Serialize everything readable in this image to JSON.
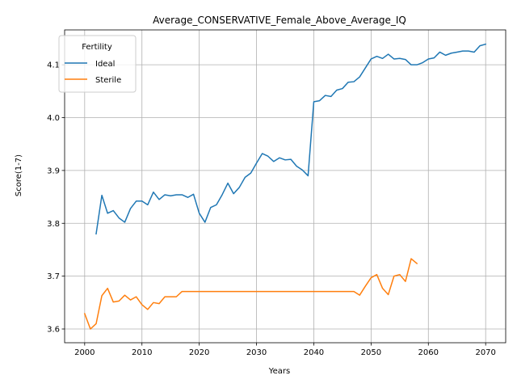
{
  "chart_data": {
    "type": "line",
    "title": "Average_CONSERVATIVE_Female_Above_Average_IQ",
    "xlabel": "Years",
    "ylabel": "Score(1-7)",
    "xlim": [
      1996.5,
      2073.5
    ],
    "ylim": [
      3.574,
      4.166
    ],
    "x_ticks": [
      2000,
      2010,
      2020,
      2030,
      2040,
      2050,
      2060,
      2070
    ],
    "y_ticks": [
      3.6,
      3.7,
      3.8,
      3.9,
      4.0,
      4.1
    ],
    "x_tick_labels": [
      "2000",
      "2010",
      "2020",
      "2030",
      "2040",
      "2050",
      "2060",
      "2070"
    ],
    "y_tick_labels": [
      "3.6",
      "3.7",
      "3.8",
      "3.9",
      "4.0",
      "4.1"
    ],
    "grid": true,
    "legend": {
      "title": "Fertility",
      "placement": "top-left"
    },
    "series": [
      {
        "name": "Ideal",
        "color": "#1f77b4",
        "x": [
          2002,
          2003,
          2004,
          2005,
          2006,
          2007,
          2008,
          2009,
          2010,
          2011,
          2012,
          2013,
          2014,
          2015,
          2016,
          2017,
          2018,
          2019,
          2020,
          2021,
          2022,
          2023,
          2024,
          2025,
          2026,
          2027,
          2028,
          2029,
          2030,
          2031,
          2032,
          2033,
          2034,
          2035,
          2036,
          2037,
          2038,
          2039,
          2040,
          2041,
          2042,
          2043,
          2044,
          2045,
          2046,
          2047,
          2048,
          2049,
          2050,
          2051,
          2052,
          2053,
          2054,
          2055,
          2056,
          2057,
          2058,
          2059,
          2060,
          2061,
          2062,
          2063,
          2064,
          2065,
          2066,
          2067,
          2068,
          2069,
          2070
        ],
        "values": [
          3.78,
          3.853,
          3.819,
          3.824,
          3.81,
          3.802,
          3.828,
          3.842,
          3.842,
          3.835,
          3.859,
          3.845,
          3.854,
          3.852,
          3.854,
          3.854,
          3.849,
          3.855,
          3.819,
          3.802,
          3.83,
          3.835,
          3.854,
          3.876,
          3.856,
          3.868,
          3.887,
          3.895,
          3.914,
          3.932,
          3.927,
          3.917,
          3.924,
          3.92,
          3.921,
          3.908,
          3.901,
          3.89,
          4.03,
          4.032,
          4.042,
          4.04,
          4.052,
          4.055,
          4.067,
          4.068,
          4.077,
          4.094,
          4.111,
          4.116,
          4.112,
          4.12,
          4.111,
          4.112,
          4.11,
          4.1,
          4.1,
          4.104,
          4.111,
          4.113,
          4.124,
          4.118,
          4.122,
          4.124,
          4.126,
          4.126,
          4.124,
          4.136,
          4.139
        ]
      },
      {
        "name": "Sterile",
        "color": "#ff7f0e",
        "x": [
          2000,
          2001,
          2002,
          2003,
          2004,
          2005,
          2006,
          2007,
          2008,
          2009,
          2010,
          2011,
          2012,
          2013,
          2014,
          2015,
          2016,
          2017,
          2018,
          2019,
          2020,
          2021,
          2022,
          2023,
          2024,
          2025,
          2026,
          2027,
          2028,
          2029,
          2030,
          2031,
          2032,
          2033,
          2034,
          2035,
          2036,
          2037,
          2038,
          2039,
          2040,
          2041,
          2042,
          2043,
          2044,
          2045,
          2046,
          2047,
          2048,
          2049,
          2050,
          2051,
          2052,
          2053,
          2054,
          2055,
          2056,
          2057,
          2058
        ],
        "values": [
          3.629,
          3.6,
          3.61,
          3.663,
          3.677,
          3.651,
          3.653,
          3.664,
          3.655,
          3.661,
          3.646,
          3.637,
          3.65,
          3.648,
          3.661,
          3.661,
          3.661,
          3.671,
          3.671,
          3.671,
          3.671,
          3.671,
          3.671,
          3.671,
          3.671,
          3.671,
          3.671,
          3.671,
          3.671,
          3.671,
          3.671,
          3.671,
          3.671,
          3.671,
          3.671,
          3.671,
          3.671,
          3.671,
          3.671,
          3.671,
          3.671,
          3.671,
          3.671,
          3.671,
          3.671,
          3.671,
          3.671,
          3.671,
          3.664,
          3.681,
          3.697,
          3.703,
          3.677,
          3.665,
          3.7,
          3.703,
          3.69,
          3.733,
          3.724
        ]
      }
    ]
  }
}
